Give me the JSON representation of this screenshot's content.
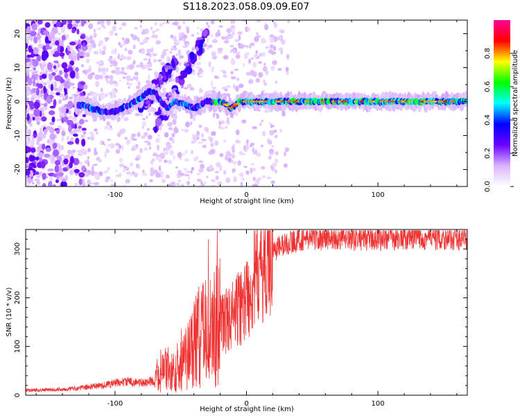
{
  "title": "S118.2023.058.09.09.E07",
  "chart_data": [
    {
      "type": "heatmap",
      "xlabel": "Height of straight line (km)",
      "ylabel": "Frequency (Hz)",
      "xlim": [
        -168,
        168
      ],
      "ylim": [
        -25,
        24
      ],
      "x_ticks": [
        -100,
        0,
        100
      ],
      "y_ticks": [
        -20,
        -10,
        0,
        10,
        20
      ],
      "colorbar": {
        "label": "Normalized spectral amplitude",
        "range": [
          0,
          1
        ],
        "ticks": [
          0.0,
          0.2,
          0.4,
          0.6,
          0.8
        ],
        "colors": [
          "#ffffff",
          "#d9b3ff",
          "#6a00ff",
          "#0000ff",
          "#00ffff",
          "#00ff00",
          "#ffff00",
          "#ff0000",
          "#ff0099"
        ]
      },
      "ridge": {
        "x": [
          -125,
          -110,
          -100,
          -90,
          -80,
          -75,
          -70,
          -65,
          -60,
          -55,
          -45,
          -40,
          -30,
          -20,
          -15,
          -12,
          -5,
          0,
          50,
          100,
          168
        ],
        "y": [
          -1,
          -3,
          -3,
          -1,
          1,
          3,
          3,
          0,
          -2,
          0,
          -1,
          -2,
          0,
          0,
          -1,
          -2,
          0,
          0,
          0,
          0,
          0
        ]
      },
      "diagonal_features": [
        {
          "x": [
            -70,
            -30
          ],
          "y": [
            -8,
            20
          ]
        },
        {
          "x": [
            -80,
            -55
          ],
          "y": [
            -2,
            12
          ]
        }
      ]
    },
    {
      "type": "line",
      "xlabel": "Height of straight line (km)",
      "ylabel": "SNR (10 * v/v)",
      "xlim": [
        -168,
        168
      ],
      "ylim": [
        0,
        340
      ],
      "x_ticks": [
        -100,
        0,
        100
      ],
      "y_ticks": [
        0,
        100,
        200,
        300
      ],
      "color": "#ee3333",
      "series": [
        {
          "x": [
            -168,
            -150,
            -130,
            -110,
            -100,
            -90,
            -80,
            -70,
            -60,
            -55,
            -50,
            -45,
            -40,
            -35,
            -30,
            -25,
            -20,
            -15,
            -10,
            -5,
            0,
            5,
            10,
            15,
            20,
            25,
            30,
            35,
            40,
            45,
            50,
            60,
            80,
            100,
            120,
            140,
            168
          ],
          "y": [
            10,
            11,
            14,
            20,
            25,
            28,
            25,
            30,
            55,
            40,
            60,
            80,
            110,
            120,
            130,
            140,
            150,
            155,
            165,
            180,
            200,
            230,
            260,
            280,
            295,
            305,
            310,
            315,
            320,
            322,
            323,
            323,
            322,
            322,
            323,
            323,
            322
          ]
        }
      ]
    }
  ]
}
